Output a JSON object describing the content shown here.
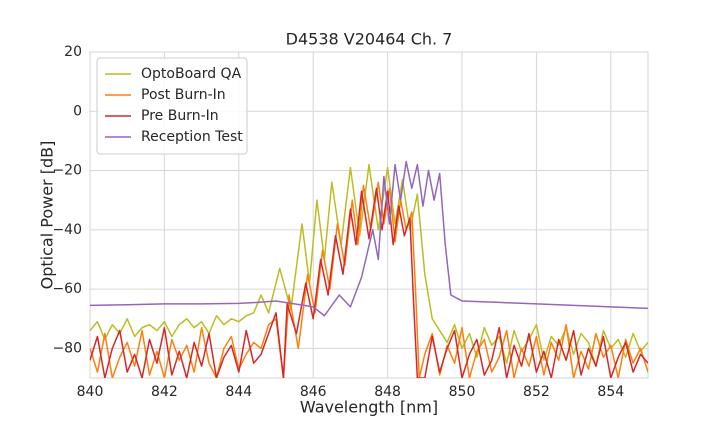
{
  "chart_data": {
    "type": "line",
    "title": "D4538 V20464 Ch. 7",
    "x_label": "Wavelength [nm]",
    "y_label": "Optical Power [dB]",
    "xlim": [
      840,
      855
    ],
    "ylim": [
      -90,
      20
    ],
    "xticks": [
      840,
      842,
      844,
      846,
      848,
      850,
      852,
      854
    ],
    "yticks": [
      {
        "value": -80,
        "label": "−80"
      },
      {
        "value": -60,
        "label": "−60"
      },
      {
        "value": -40,
        "label": "−40"
      },
      {
        "value": -20,
        "label": "−20"
      },
      0,
      20
    ],
    "grid": true,
    "legend": "upper left",
    "series": [
      {
        "name": "OptoBoard QA",
        "color": "#bcbd22",
        "x": [
          840,
          840.2,
          840.4,
          840.6,
          840.8,
          841,
          841.2,
          841.4,
          841.6,
          841.8,
          842,
          842.2,
          842.4,
          842.6,
          842.8,
          843,
          843.2,
          843.4,
          843.6,
          843.8,
          844,
          844.2,
          844.4,
          844.6,
          844.8,
          845.1,
          845.4,
          845.7,
          845.9,
          846.1,
          846.3,
          846.5,
          846.75,
          847,
          847.25,
          847.5,
          847.75,
          848,
          848.2,
          848.4,
          848.6,
          848.8,
          849,
          849.2,
          849.4,
          849.6,
          849.8,
          850,
          850.2,
          850.4,
          850.6,
          850.8,
          851,
          851.2,
          851.4,
          851.6,
          851.8,
          852,
          852.2,
          852.4,
          852.6,
          852.8,
          853,
          853.2,
          853.4,
          853.6,
          853.8,
          854,
          854.2,
          854.4,
          854.6,
          854.8,
          855
        ],
        "values": [
          -74,
          -71,
          -77,
          -72,
          -75,
          -70,
          -76,
          -73,
          -72,
          -74,
          -71,
          -76,
          -72,
          -70,
          -73,
          -71,
          -75,
          -69,
          -72,
          -70,
          -71,
          -69,
          -68,
          -62,
          -68,
          -53,
          -67,
          -38,
          -58,
          -30,
          -50,
          -24,
          -45,
          -19,
          -42,
          -18,
          -40,
          -19,
          -38,
          -23,
          -40,
          -28,
          -55,
          -70,
          -74,
          -78,
          -72,
          -80,
          -75,
          -83,
          -73,
          -79,
          -76,
          -85,
          -74,
          -81,
          -77,
          -72,
          -84,
          -76,
          -79,
          -73,
          -82,
          -75,
          -78,
          -86,
          -74,
          -80,
          -77,
          -83,
          -75,
          -81,
          -78
        ]
      },
      {
        "name": "Post Burn-In",
        "color": "#ff7f0e",
        "x": [
          840,
          840.2,
          840.4,
          840.6,
          840.8,
          841,
          841.2,
          841.4,
          841.6,
          841.8,
          842,
          842.2,
          842.4,
          842.6,
          842.8,
          843,
          843.2,
          843.4,
          843.6,
          843.8,
          844,
          844.2,
          844.4,
          844.6,
          844.8,
          845,
          845.2,
          845.35,
          845.6,
          845.85,
          846.05,
          846.25,
          846.45,
          846.65,
          846.85,
          847.05,
          847.2,
          847.35,
          847.55,
          847.75,
          847.9,
          848.05,
          848.2,
          848.35,
          848.5,
          848.65,
          848.75,
          848.85,
          849,
          849.2,
          849.4,
          849.6,
          849.8,
          850,
          850.2,
          850.4,
          850.6,
          850.8,
          851,
          851.2,
          851.4,
          851.6,
          851.8,
          852,
          852.2,
          852.4,
          852.6,
          852.8,
          853,
          853.2,
          853.4,
          853.6,
          853.8,
          854,
          854.2,
          854.4,
          854.6,
          854.8,
          855
        ],
        "values": [
          -80,
          -88,
          -75,
          -90,
          -83,
          -78,
          -86,
          -74,
          -89,
          -81,
          -90,
          -77,
          -84,
          -79,
          -88,
          -73,
          -85,
          -90,
          -80,
          -76,
          -87,
          -82,
          -78,
          -80,
          -72,
          -70,
          -90,
          -62,
          -80,
          -55,
          -68,
          -47,
          -60,
          -38,
          -52,
          -30,
          -45,
          -25,
          -40,
          -24,
          -38,
          -26,
          -44,
          -30,
          -40,
          -34,
          -60,
          -90,
          -82,
          -75,
          -89,
          -79,
          -85,
          -73,
          -90,
          -81,
          -77,
          -88,
          -83,
          -74,
          -90,
          -80,
          -86,
          -76,
          -89,
          -78,
          -84,
          -72,
          -90,
          -81,
          -87,
          -75,
          -83,
          -79,
          -90,
          -77,
          -85,
          -80,
          -88
        ]
      },
      {
        "name": "Pre Burn-In",
        "color": "#d62728",
        "x": [
          840,
          840.2,
          840.4,
          840.6,
          840.8,
          841,
          841.2,
          841.4,
          841.6,
          841.8,
          842,
          842.2,
          842.4,
          842.6,
          842.8,
          843,
          843.2,
          843.4,
          843.6,
          843.8,
          844,
          844.2,
          844.4,
          844.6,
          844.8,
          845,
          845.2,
          845.3,
          845.55,
          845.8,
          846,
          846.2,
          846.4,
          846.6,
          846.8,
          847,
          847.15,
          847.3,
          847.5,
          847.7,
          847.85,
          848,
          848.15,
          848.3,
          848.45,
          848.6,
          848.7,
          848.8,
          849,
          849.2,
          849.4,
          849.6,
          849.8,
          850,
          850.2,
          850.4,
          850.6,
          850.8,
          851,
          851.2,
          851.4,
          851.6,
          851.8,
          852,
          852.2,
          852.4,
          852.6,
          852.8,
          853,
          853.2,
          853.4,
          853.6,
          853.8,
          854,
          854.2,
          854.4,
          854.6,
          854.8,
          855
        ],
        "values": [
          -84,
          -76,
          -90,
          -80,
          -74,
          -88,
          -82,
          -90,
          -77,
          -85,
          -73,
          -89,
          -81,
          -90,
          -78,
          -86,
          -75,
          -90,
          -83,
          -79,
          -88,
          -74,
          -85,
          -82,
          -75,
          -68,
          -90,
          -65,
          -75,
          -58,
          -70,
          -50,
          -62,
          -42,
          -55,
          -33,
          -45,
          -27,
          -43,
          -26,
          -40,
          -27,
          -45,
          -32,
          -42,
          -36,
          -65,
          -90,
          -90,
          -76,
          -88,
          -80,
          -74,
          -90,
          -82,
          -77,
          -89,
          -84,
          -73,
          -90,
          -79,
          -86,
          -75,
          -88,
          -81,
          -90,
          -77,
          -84,
          -74,
          -89,
          -80,
          -86,
          -76,
          -90,
          -83,
          -78,
          -88,
          -82,
          -85
        ]
      },
      {
        "name": "Reception Test",
        "color": "#9467bd",
        "x": [
          840,
          841,
          842,
          843,
          844,
          844.5,
          845,
          845.5,
          846,
          846.3,
          846.7,
          847,
          847.3,
          847.6,
          847.75,
          847.9,
          848.05,
          848.2,
          848.35,
          848.5,
          848.65,
          848.8,
          848.95,
          849.1,
          849.25,
          849.4,
          849.55,
          849.7,
          850,
          851,
          852,
          853,
          854,
          855
        ],
        "values": [
          -65.5,
          -65.3,
          -65,
          -65,
          -64.8,
          -64.5,
          -64,
          -65,
          -66,
          -69,
          -62,
          -66,
          -56,
          -40,
          -50,
          -22,
          -38,
          -18,
          -30,
          -17,
          -26,
          -18,
          -32,
          -20,
          -30,
          -21,
          -45,
          -62,
          -64,
          -64.5,
          -65,
          -65.5,
          -66,
          -66.5
        ]
      }
    ]
  }
}
